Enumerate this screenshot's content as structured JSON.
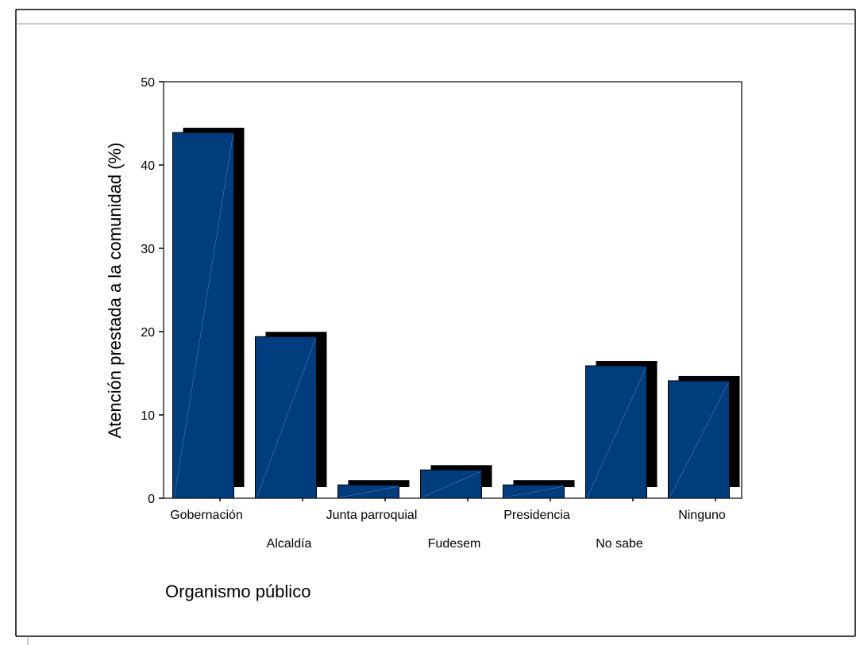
{
  "chart_data": {
    "type": "bar",
    "categories": [
      "Gobernación",
      "Alcaldía",
      "Junta parroquial",
      "Fudesem",
      "Presidencia",
      "No sabe",
      "Ninguno"
    ],
    "values": [
      43.9,
      19.4,
      1.6,
      3.4,
      1.6,
      15.9,
      14.1
    ],
    "xlabel": "Organismo público",
    "ylabel": "Atención prestada a la comunidad (%)",
    "ylim": [
      0,
      50
    ],
    "yticks": [
      0,
      10,
      20,
      30,
      40,
      50
    ],
    "grid": false,
    "legend": "none",
    "bar_color": "#003d7f",
    "shadow_color": "#000000"
  }
}
